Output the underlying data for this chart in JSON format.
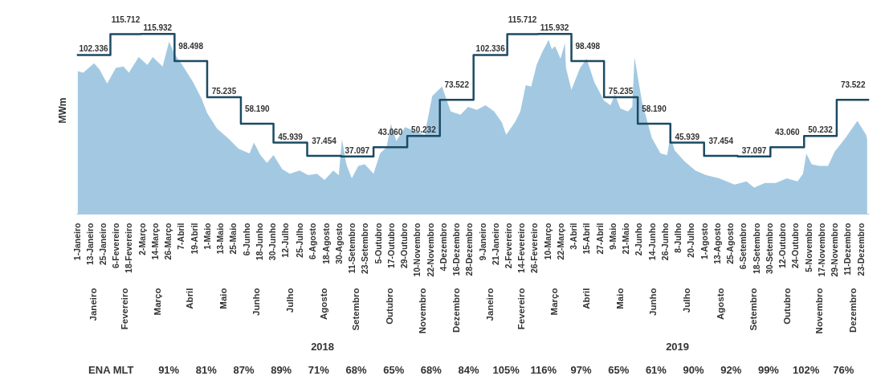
{
  "chart_data": {
    "type": "area",
    "ylabel": "MWm",
    "tick_labels": "x",
    "grid": false,
    "xlim": [
      "2018-01-01",
      "2019-12-31"
    ],
    "xticks": [
      {
        "value": "2018-01-01",
        "label": "1-Janeiro"
      },
      {
        "value": "2018-01-13",
        "label": "13-Janeiro"
      },
      {
        "value": "2018-01-25",
        "label": "25-Janeiro"
      },
      {
        "value": "2018-02-06",
        "label": "6-Fevereiro"
      },
      {
        "value": "2018-02-18",
        "label": "18-Fevereiro"
      },
      {
        "value": "2018-03-02",
        "label": "2-Março"
      },
      {
        "value": "2018-03-14",
        "label": "14-Março"
      },
      {
        "value": "2018-03-26",
        "label": "26-Março"
      },
      {
        "value": "2018-04-07",
        "label": "7-Abril"
      },
      {
        "value": "2018-04-19",
        "label": "19-Abril"
      },
      {
        "value": "2018-05-01",
        "label": "1-Maio"
      },
      {
        "value": "2018-05-13",
        "label": "13-Maio"
      },
      {
        "value": "2018-05-25",
        "label": "25-Maio"
      },
      {
        "value": "2018-06-06",
        "label": "6-Junho"
      },
      {
        "value": "2018-06-18",
        "label": "18-Junho"
      },
      {
        "value": "2018-06-30",
        "label": "30-Junho"
      },
      {
        "value": "2018-07-12",
        "label": "12-Julho"
      },
      {
        "value": "2018-07-25",
        "label": "25-Julho"
      },
      {
        "value": "2018-08-06",
        "label": "6-Agosto"
      },
      {
        "value": "2018-08-18",
        "label": "18-Agosto"
      },
      {
        "value": "2018-08-30",
        "label": "30-Agosto"
      },
      {
        "value": "2018-09-11",
        "label": "11-Setembro"
      },
      {
        "value": "2018-09-23",
        "label": "23-Setembro"
      },
      {
        "value": "2018-10-05",
        "label": "5-Outubro"
      },
      {
        "value": "2018-10-17",
        "label": "17-Outubro"
      },
      {
        "value": "2018-10-29",
        "label": "29-Outubro"
      },
      {
        "value": "2018-11-10",
        "label": "10-Novembro"
      },
      {
        "value": "2018-11-22",
        "label": "22-Novembro"
      },
      {
        "value": "2018-12-04",
        "label": "4-Dezembro"
      },
      {
        "value": "2018-12-16",
        "label": "16-Dezembro"
      },
      {
        "value": "2018-12-28",
        "label": "28-Dezembro"
      },
      {
        "value": "2019-01-09",
        "label": "9-Janeiro"
      },
      {
        "value": "2019-01-21",
        "label": "21-Janeiro"
      },
      {
        "value": "2019-02-02",
        "label": "2-Fevereiro"
      },
      {
        "value": "2019-02-14",
        "label": "14-Fevereiro"
      },
      {
        "value": "2019-02-26",
        "label": "26-Fevereiro"
      },
      {
        "value": "2019-03-10",
        "label": "10-Março"
      },
      {
        "value": "2019-03-22",
        "label": "22-Março"
      },
      {
        "value": "2019-04-03",
        "label": "3-Abril"
      },
      {
        "value": "2019-04-15",
        "label": "15-Abril"
      },
      {
        "value": "2019-04-27",
        "label": "27-Abril"
      },
      {
        "value": "2019-05-09",
        "label": "9-Maio"
      },
      {
        "value": "2019-05-21",
        "label": "21-Maio"
      },
      {
        "value": "2019-06-02",
        "label": "2-Junho"
      },
      {
        "value": "2019-06-14",
        "label": "14-Junho"
      },
      {
        "value": "2019-06-26",
        "label": "26-Junho"
      },
      {
        "value": "2019-07-08",
        "label": "8-Julho"
      },
      {
        "value": "2019-07-20",
        "label": "20-Julho"
      },
      {
        "value": "2019-08-01",
        "label": "1-Agosto"
      },
      {
        "value": "2019-08-13",
        "label": "13-Agosto"
      },
      {
        "value": "2019-08-25",
        "label": "25-Agosto"
      },
      {
        "value": "2019-09-06",
        "label": "6-Setembro"
      },
      {
        "value": "2019-09-18",
        "label": "18-Setembro"
      },
      {
        "value": "2019-09-30",
        "label": "30-Setembro"
      },
      {
        "value": "2019-10-12",
        "label": "12-Outubro"
      },
      {
        "value": "2019-10-24",
        "label": "24-Outubro"
      },
      {
        "value": "2019-11-05",
        "label": "5-Novembro"
      },
      {
        "value": "2019-11-17",
        "label": "17-Novembro"
      },
      {
        "value": "2019-11-29",
        "label": "29-Novembro"
      },
      {
        "value": "2019-12-11",
        "label": "11-Dezembro"
      },
      {
        "value": "2019-12-23",
        "label": "23-Dezembro"
      }
    ],
    "x2ticks": [
      {
        "value": "2018-01-16",
        "label": "Janeiro"
      },
      {
        "value": "2018-02-14",
        "label": "Fevereiro"
      },
      {
        "value": "2018-03-16",
        "label": "Março"
      },
      {
        "value": "2018-04-15",
        "label": "Abril"
      },
      {
        "value": "2018-05-16",
        "label": "Maio"
      },
      {
        "value": "2018-06-15",
        "label": "Junho"
      },
      {
        "value": "2018-07-16",
        "label": "Julho"
      },
      {
        "value": "2018-08-16",
        "label": "Agosto"
      },
      {
        "value": "2018-09-15",
        "label": "Setembro"
      },
      {
        "value": "2018-10-16",
        "label": "Outubro"
      },
      {
        "value": "2018-11-15",
        "label": "Novembro"
      },
      {
        "value": "2018-12-16",
        "label": "Dezembro"
      },
      {
        "value": "2019-01-16",
        "label": "Janeiro"
      },
      {
        "value": "2019-02-14",
        "label": "Fevereiro"
      },
      {
        "value": "2019-03-16",
        "label": "Março"
      },
      {
        "value": "2019-04-15",
        "label": "Abril"
      },
      {
        "value": "2019-05-16",
        "label": "Maio"
      },
      {
        "value": "2019-06-15",
        "label": "Junho"
      },
      {
        "value": "2019-07-16",
        "label": "Julho"
      },
      {
        "value": "2019-08-16",
        "label": "Agosto"
      },
      {
        "value": "2019-09-15",
        "label": "Setembro"
      },
      {
        "value": "2019-10-16",
        "label": "Outubro"
      },
      {
        "value": "2019-11-15",
        "label": "Novembro"
      },
      {
        "value": "2019-12-16",
        "label": "Dezembro"
      }
    ],
    "x2lim": [
      "2018-01-01",
      "2019-12-31"
    ],
    "annotations": [
      "2018",
      "2019",
      "ENA MLT",
      "91%",
      "81%",
      "87%",
      "89%",
      "71%",
      "68%",
      "65%",
      "68%",
      "84%",
      "105%",
      "116%",
      "97%",
      "65%",
      "61%",
      "90%",
      "92%",
      "99%",
      "102%",
      "76%"
    ],
    "series": [
      {
        "color": "#a3c9e2",
        "x": [
          "2018-01-02",
          "2018-01-07",
          "2018-01-17",
          "2018-01-22",
          "2018-01-29",
          "2018-02-06",
          "2018-02-13",
          "2018-02-18",
          "2018-02-27",
          "2018-03-07",
          "2018-03-12",
          "2018-03-21",
          "2018-03-27",
          "2018-04-01",
          "2018-04-08",
          "2018-04-18",
          "2018-04-26",
          "2018-05-01",
          "2018-05-10",
          "2018-05-20",
          "2018-05-30",
          "2018-06-09",
          "2018-06-13",
          "2018-06-19",
          "2018-06-25",
          "2018-07-01",
          "2018-07-09",
          "2018-07-16",
          "2018-07-25",
          "2018-08-02",
          "2018-08-10",
          "2018-08-17",
          "2018-08-25",
          "2018-08-30",
          "2018-09-02",
          "2018-09-06",
          "2018-09-11",
          "2018-09-17",
          "2018-09-23",
          "2018-10-01",
          "2018-10-07",
          "2018-10-13",
          "2018-10-17",
          "2018-10-22",
          "2018-10-30",
          "2018-11-09",
          "2018-11-17",
          "2018-11-24",
          "2018-12-03",
          "2018-12-11",
          "2018-12-20",
          "2018-12-27",
          "2019-01-04",
          "2019-01-12",
          "2019-01-20",
          "2019-01-27",
          "2019-01-31",
          "2019-02-08",
          "2019-02-13",
          "2019-02-18",
          "2019-02-23",
          "2019-02-28",
          "2019-03-05",
          "2019-03-11",
          "2019-03-14",
          "2019-03-17",
          "2019-03-22",
          "2019-03-26",
          "2019-03-27",
          "2019-04-01",
          "2019-04-09",
          "2019-04-15",
          "2019-04-22",
          "2019-05-01",
          "2019-05-07",
          "2019-05-11",
          "2019-05-16",
          "2019-05-23",
          "2019-05-27",
          "2019-05-29",
          "2019-06-05",
          "2019-06-14",
          "2019-06-22",
          "2019-06-28",
          "2019-07-01",
          "2019-07-05",
          "2019-07-14",
          "2019-07-24",
          "2019-08-03",
          "2019-08-15",
          "2019-08-29",
          "2019-09-09",
          "2019-09-16",
          "2019-09-26",
          "2019-10-06",
          "2019-10-16",
          "2019-10-26",
          "2019-10-31",
          "2019-11-03",
          "2019-11-08",
          "2019-11-15",
          "2019-11-23",
          "2019-11-29",
          "2019-12-09",
          "2019-12-20",
          "2019-12-28",
          "2019-12-29"
        ],
        "values": [
          92,
          91,
          97,
          93,
          84,
          94,
          95,
          91,
          101,
          96,
          101,
          95,
          111,
          103,
          96,
          85,
          74,
          65,
          55,
          49,
          42,
          39,
          46,
          38,
          33,
          38,
          29,
          26,
          28,
          25,
          26,
          22,
          28,
          25,
          48,
          32,
          23,
          31,
          32,
          26,
          39,
          43,
          58,
          47,
          56,
          53,
          51,
          76,
          82,
          66,
          64,
          69,
          67,
          70,
          66,
          59,
          51,
          59,
          66,
          83,
          82,
          96,
          104,
          112,
          106,
          108,
          100,
          110,
          94,
          80,
          94,
          100,
          85,
          73,
          70,
          77,
          68,
          66,
          69,
          101,
          72,
          49,
          39,
          38,
          50,
          41,
          34,
          28,
          25,
          23,
          19,
          21,
          17,
          20,
          20,
          23,
          21,
          26,
          39,
          32,
          31,
          31,
          40,
          49,
          60,
          51,
          48
        ]
      },
      {
        "type": "step",
        "color": "#1c4a63",
        "x": [
          "2018-01",
          "2018-02",
          "2018-03",
          "2018-04",
          "2018-05",
          "2018-06",
          "2018-07",
          "2018-08",
          "2018-09",
          "2018-10",
          "2018-11",
          "2018-12",
          "2019-01",
          "2019-02",
          "2019-03",
          "2019-04",
          "2019-05",
          "2019-06",
          "2019-07",
          "2019-08",
          "2019-09",
          "2019-10",
          "2019-11",
          "2019-12",
          "2019-12-31"
        ],
        "values": [
          102.336,
          115.712,
          115.932,
          98.498,
          75.235,
          58.19,
          45.939,
          37.454,
          37.097,
          43.06,
          50.232,
          73.522,
          102.336,
          115.712,
          115.932,
          98.498,
          75.235,
          58.19,
          45.939,
          37.454,
          37.097,
          43.06,
          50.232,
          73.522,
          73.522
        ],
        "value_labels": [
          "102.336",
          "115.712",
          "115.932",
          "98.498",
          "75.235",
          "58.190",
          "45.939",
          "37.454",
          "37.097",
          "43.060",
          "50.232",
          "73.522",
          "102.336",
          "115.712",
          "115.932",
          "98.498",
          "75.235",
          "58.190",
          "45.939",
          "37.454",
          "37.097",
          "43.060",
          "50.232",
          "73.522",
          null
        ]
      }
    ]
  }
}
